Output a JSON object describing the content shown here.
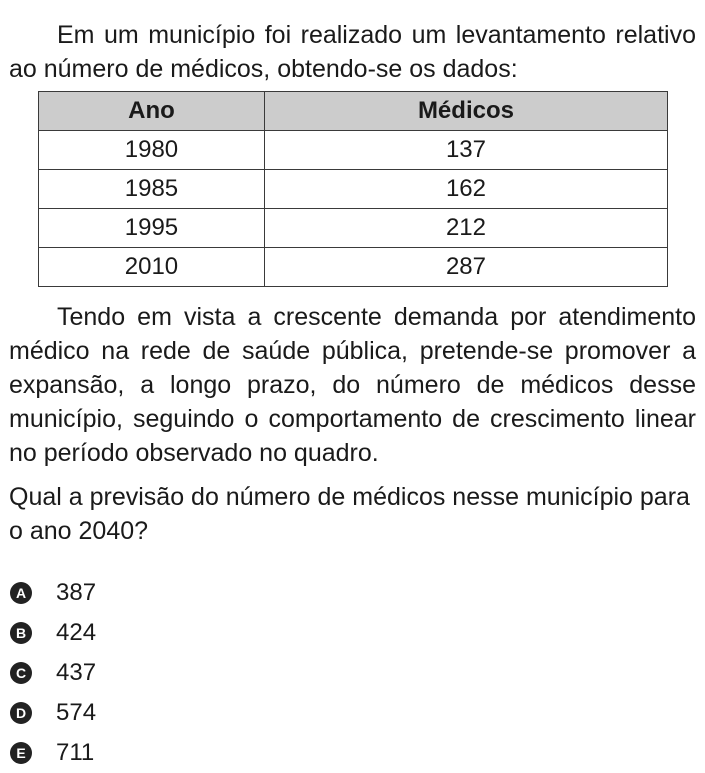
{
  "intro": "Em um município foi realizado um levantamento relativo ao número de médicos, obtendo-se os dados:",
  "table": {
    "headers": [
      "Ano",
      "Médicos"
    ],
    "rows": [
      [
        "1980",
        "137"
      ],
      [
        "1985",
        "162"
      ],
      [
        "1995",
        "212"
      ],
      [
        "2010",
        "287"
      ]
    ]
  },
  "context": "Tendo em vista a crescente demanda por atendimento médico na rede de saúde pública, pretende-se promover a expansão, a longo prazo, do número de médicos desse município, seguindo o comportamento de crescimento linear no período observado no quadro.",
  "question": "Qual a previsão do número de médicos nesse município para o ano 2040?",
  "options": [
    {
      "letter": "A",
      "text": "387"
    },
    {
      "letter": "B",
      "text": "424"
    },
    {
      "letter": "C",
      "text": "437"
    },
    {
      "letter": "D",
      "text": "574"
    },
    {
      "letter": "E",
      "text": "711"
    }
  ]
}
